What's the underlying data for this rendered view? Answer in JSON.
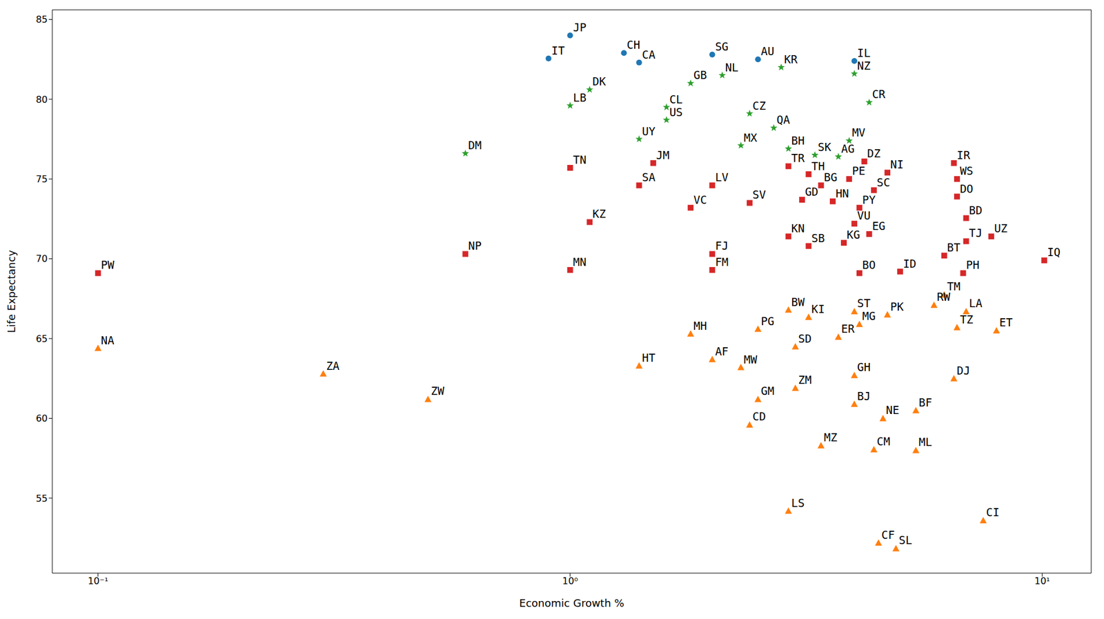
{
  "chart_data": {
    "type": "scatter",
    "xlabel": "Economic Growth %",
    "ylabel": "Life Expectancy",
    "log": "x",
    "grid": false,
    "xlim": [
      0.08,
      12.7
    ],
    "ylim": [
      50.3,
      85.6
    ],
    "xticks": [
      {
        "value": 0.1,
        "label": "10⁻¹"
      },
      {
        "value": 1,
        "label": "10⁰"
      },
      {
        "value": 10,
        "label": "10¹"
      }
    ],
    "yticks": [
      55,
      60,
      65,
      70,
      75,
      80,
      85
    ],
    "series": [
      {
        "color": "#1f77b4",
        "marker": "circle",
        "labels": [
          "JP",
          "IT",
          "CH",
          "CA",
          "SG",
          "AU",
          "IL"
        ],
        "x": [
          1.0,
          0.9,
          1.3,
          1.4,
          2.0,
          2.5,
          4.0
        ],
        "values": [
          84.0,
          82.55,
          82.9,
          82.3,
          82.8,
          82.5,
          82.4
        ]
      },
      {
        "color": "#2ca02c",
        "marker": "star",
        "labels": [
          "KR",
          "NZ",
          "NL",
          "GB",
          "DK",
          "LB",
          "CL",
          "US",
          "CR",
          "CZ",
          "QA",
          "UY",
          "MX",
          "BH",
          "MV",
          "SK",
          "AG",
          "DM"
        ],
        "x": [
          2.8,
          4.0,
          2.1,
          1.8,
          1.1,
          1.0,
          1.6,
          1.6,
          4.3,
          2.4,
          2.7,
          1.4,
          2.3,
          2.9,
          3.9,
          3.3,
          3.7,
          0.6
        ],
        "values": [
          82.0,
          81.6,
          81.5,
          81.0,
          80.6,
          79.6,
          79.5,
          78.7,
          79.8,
          79.1,
          78.2,
          77.5,
          77.1,
          76.9,
          77.4,
          76.5,
          76.4,
          76.6
        ]
      },
      {
        "color": "#d62728",
        "marker": "square",
        "labels": [
          "TN",
          "JM",
          "SA",
          "LV",
          "VC",
          "SV",
          "TR",
          "TH",
          "BG",
          "DZ",
          "PE",
          "NI",
          "SC",
          "GD",
          "HN",
          "PY",
          "VU",
          "EG",
          "KN",
          "SB",
          "KG",
          "BO",
          "ID",
          "IR",
          "WS",
          "DO",
          "BD",
          "TJ",
          "UZ",
          "BT",
          "PH",
          "IQ",
          "PW",
          "NP",
          "MN",
          "KZ",
          "FJ",
          "FM"
        ],
        "x": [
          1.0,
          1.5,
          1.4,
          2.0,
          1.8,
          2.4,
          2.9,
          3.2,
          3.4,
          4.2,
          3.9,
          4.7,
          4.4,
          3.1,
          3.6,
          4.1,
          4.0,
          4.3,
          2.9,
          3.2,
          3.8,
          4.1,
          5.0,
          6.5,
          6.6,
          6.6,
          6.9,
          6.9,
          7.8,
          6.2,
          6.8,
          10.1,
          0.1,
          0.6,
          1.0,
          1.1,
          2.0,
          2.0
        ],
        "values": [
          75.7,
          76.0,
          74.6,
          74.6,
          73.2,
          73.5,
          75.8,
          75.3,
          74.6,
          76.1,
          75.0,
          75.4,
          74.3,
          73.7,
          73.6,
          73.2,
          72.2,
          71.55,
          71.4,
          70.8,
          71.0,
          69.1,
          69.2,
          76.0,
          75.0,
          73.9,
          72.55,
          71.1,
          71.4,
          70.2,
          69.1,
          69.9,
          69.1,
          70.3,
          69.3,
          72.3,
          70.3,
          69.3
        ]
      },
      {
        "color": "#ff7f0e",
        "marker": "triangle",
        "labels": [
          "NA",
          "ZA",
          "ZW",
          "HT",
          "MH",
          "AF",
          "MW",
          "PG",
          "GM",
          "CD",
          "BW",
          "KI",
          "SD",
          "ZM",
          "ST",
          "MG",
          "PK",
          "ER",
          "GH",
          "BJ",
          "NE",
          "BF",
          "MZ",
          "CM",
          "ML",
          "LS",
          "CF",
          "SL",
          "CI",
          "DJ",
          "TZ",
          "ET",
          "LA",
          "TM",
          "RW"
        ],
        "x": [
          0.1,
          0.3,
          0.5,
          1.4,
          1.8,
          2.0,
          2.3,
          2.5,
          2.5,
          2.4,
          2.9,
          3.2,
          3.0,
          3.0,
          4.0,
          4.1,
          4.7,
          3.7,
          4.0,
          4.0,
          4.6,
          5.4,
          3.4,
          4.4,
          5.4,
          2.9,
          4.5,
          4.9,
          7.5,
          6.5,
          6.6,
          8.0,
          6.9,
          6.2,
          5.9
        ],
        "values": [
          64.4,
          62.8,
          61.2,
          63.3,
          65.3,
          63.7,
          63.2,
          65.6,
          61.2,
          59.6,
          66.8,
          66.35,
          64.5,
          61.9,
          66.7,
          65.9,
          66.5,
          65.1,
          62.7,
          60.9,
          60.0,
          60.5,
          58.3,
          58.05,
          58.0,
          54.2,
          52.2,
          51.85,
          53.6,
          62.5,
          65.7,
          65.5,
          66.7,
          67.75,
          67.1
        ]
      }
    ]
  }
}
